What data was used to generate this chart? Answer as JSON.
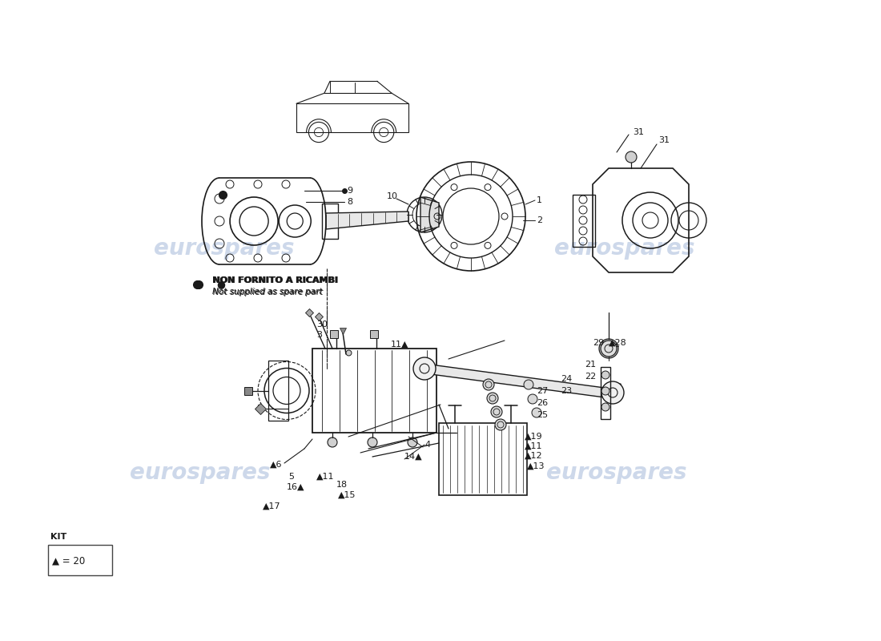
{
  "background_color": "#ffffff",
  "line_color": "#1a1a1a",
  "watermark_text": "eurospares",
  "watermark_color": "#c8d4e8",
  "note_bold": "NON FORNITO A RICAMBI",
  "note_italic": "Not supplied as spare part",
  "kit_text": "KIT",
  "kit_label": "▲ = 20",
  "figsize": [
    11.0,
    8.0
  ],
  "dpi": 100
}
